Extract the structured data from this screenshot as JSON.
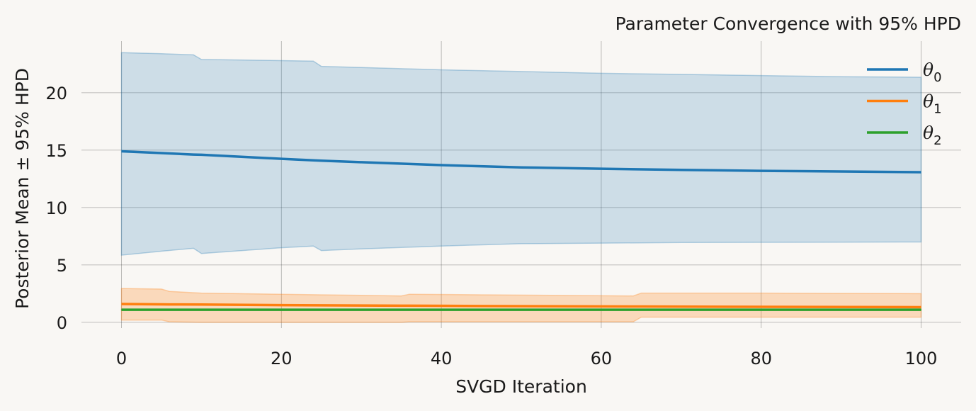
{
  "chart_data": {
    "type": "line",
    "title": "Parameter Convergence with 95% HPD",
    "xlabel": "SVGD Iteration",
    "ylabel": "Posterior Mean ± 95% HPD",
    "xlim": [
      -5,
      105
    ],
    "ylim": [
      -0.5,
      24.5
    ],
    "xticks": [
      0,
      20,
      40,
      60,
      80,
      100
    ],
    "yticks": [
      0,
      5,
      10,
      15,
      20
    ],
    "grid": true,
    "legend_position": "top-right",
    "series": [
      {
        "name": "θ",
        "subscript": "0",
        "color": "#1f77b4",
        "x": [
          0,
          5,
          9,
          10,
          20,
          24,
          25,
          30,
          40,
          50,
          60,
          70,
          80,
          90,
          100
        ],
        "mean": [
          14.9,
          14.75,
          14.62,
          14.6,
          14.25,
          14.12,
          14.08,
          13.95,
          13.7,
          13.5,
          13.38,
          13.28,
          13.2,
          13.14,
          13.08
        ],
        "lower": [
          5.85,
          6.2,
          6.45,
          6.0,
          6.5,
          6.65,
          6.25,
          6.4,
          6.65,
          6.85,
          6.9,
          6.95,
          6.97,
          6.99,
          7.0
        ],
        "upper": [
          23.5,
          23.4,
          23.3,
          22.9,
          22.8,
          22.75,
          22.3,
          22.2,
          22.0,
          21.85,
          21.7,
          21.6,
          21.5,
          21.4,
          21.35
        ]
      },
      {
        "name": "θ",
        "subscript": "1",
        "color": "#ff7f0e",
        "x": [
          0,
          5,
          6,
          10,
          20,
          35,
          36,
          45,
          64,
          65,
          80,
          100
        ],
        "mean": [
          1.6,
          1.57,
          1.56,
          1.55,
          1.5,
          1.45,
          1.45,
          1.42,
          1.38,
          1.38,
          1.35,
          1.32
        ],
        "lower": [
          0.2,
          0.2,
          0.05,
          0.0,
          0.0,
          0.0,
          0.05,
          0.05,
          0.05,
          0.45,
          0.45,
          0.45
        ],
        "upper": [
          2.95,
          2.9,
          2.7,
          2.55,
          2.45,
          2.3,
          2.45,
          2.4,
          2.3,
          2.55,
          2.55,
          2.5
        ]
      },
      {
        "name": "θ",
        "subscript": "2",
        "color": "#2ca02c",
        "x": [
          0,
          100
        ],
        "mean": [
          1.1,
          1.1
        ],
        "lower": [
          1.08,
          1.08
        ],
        "upper": [
          1.12,
          1.12
        ]
      }
    ]
  }
}
